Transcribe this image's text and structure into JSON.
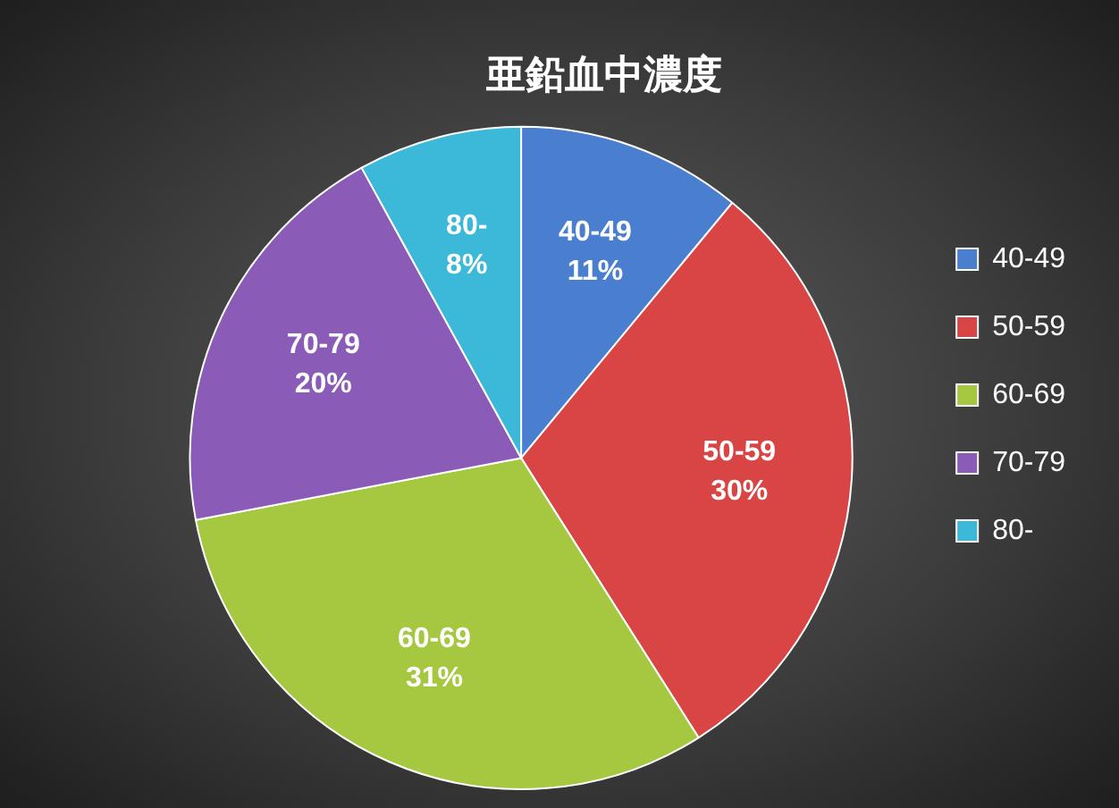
{
  "chart_data": {
    "type": "pie",
    "title": "亜鉛血中濃度",
    "categories": [
      "40-49",
      "50-59",
      "60-69",
      "70-79",
      "80-"
    ],
    "values": [
      11,
      30,
      31,
      20,
      8
    ],
    "value_labels": [
      "11%",
      "30%",
      "31%",
      "20%",
      "8%"
    ],
    "colors": [
      "#4a7fd0",
      "#d94444",
      "#a6c840",
      "#8a5cb8",
      "#3cb8d8"
    ],
    "legend": "right"
  }
}
